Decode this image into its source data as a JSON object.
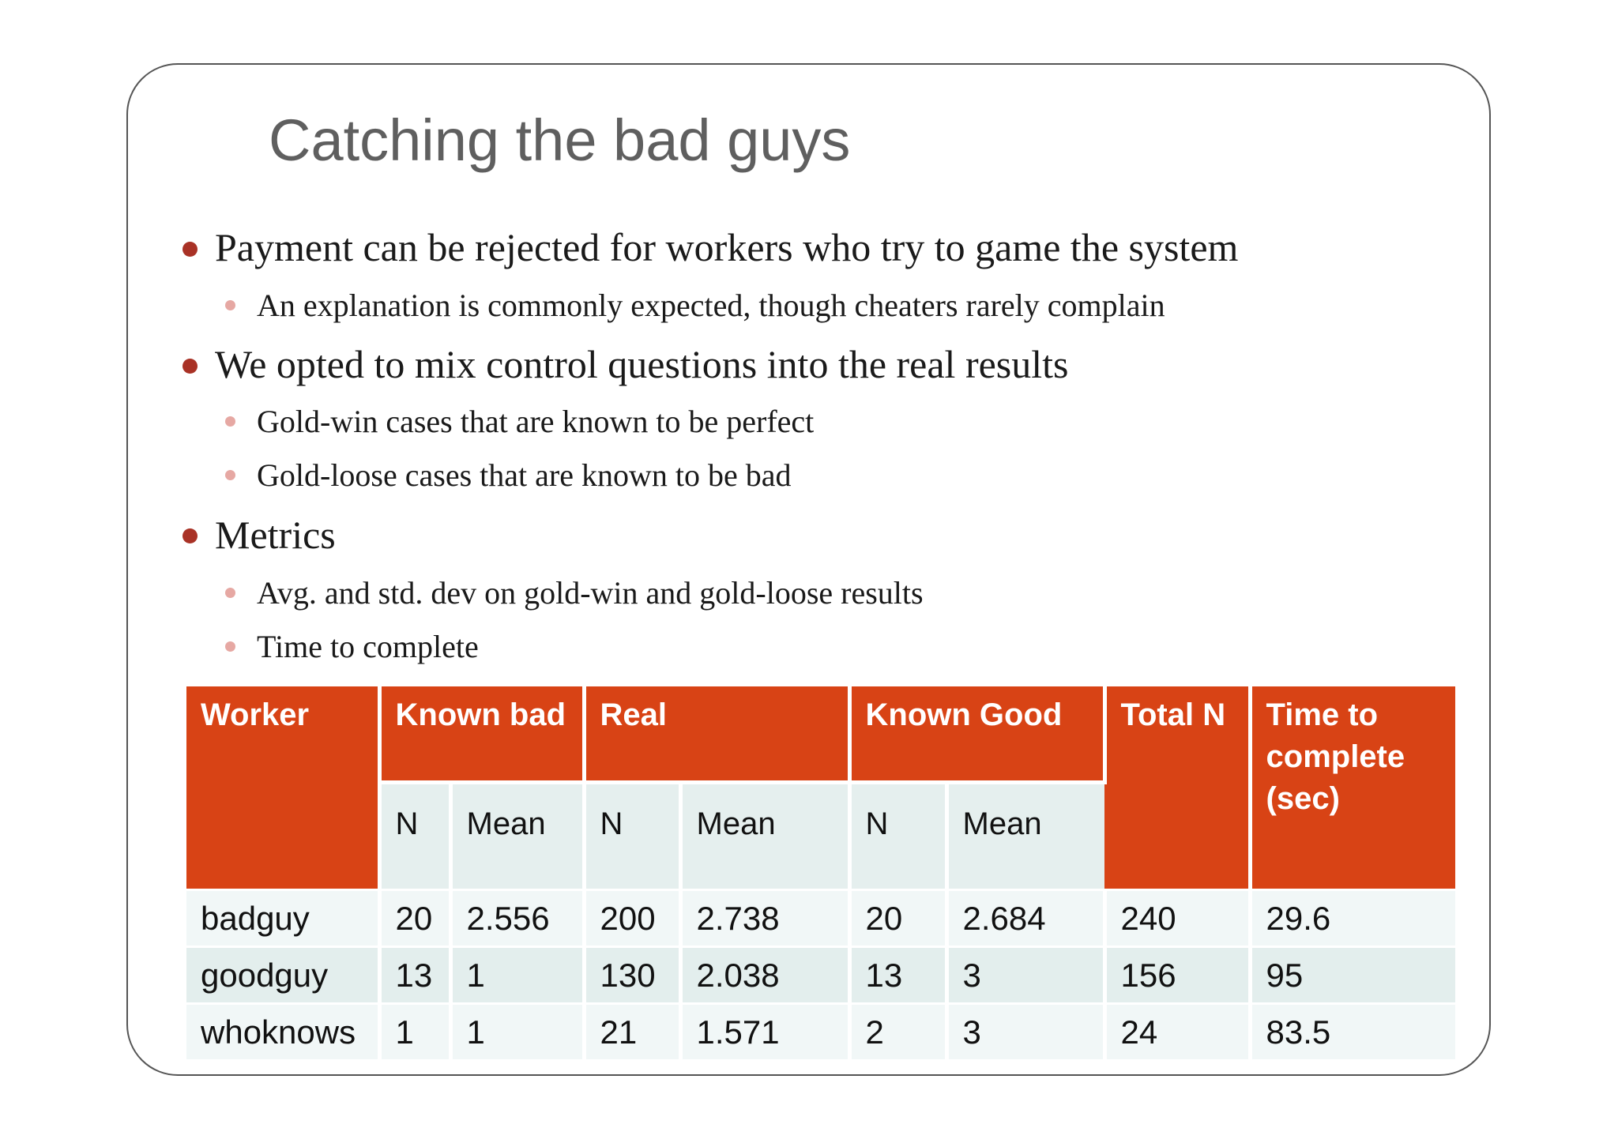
{
  "slide": {
    "title": "Catching the bad guys",
    "bullets": [
      {
        "level": 1,
        "text": "Payment can be rejected for workers who try to game the system"
      },
      {
        "level": 2,
        "text": "An explanation is commonly expected, though cheaters rarely complain"
      },
      {
        "level": 1,
        "text": "We opted to mix control questions into the real results"
      },
      {
        "level": 2,
        "text": "Gold-win cases that are known to be perfect"
      },
      {
        "level": 2,
        "text": "Gold-loose cases that are known to be bad"
      },
      {
        "level": 1,
        "text": "Metrics"
      },
      {
        "level": 2,
        "text": "Avg. and std. dev on gold-win and gold-loose results"
      },
      {
        "level": 2,
        "text": "Time to complete"
      }
    ]
  },
  "table": {
    "header": {
      "worker": "Worker",
      "known_bad": "Known bad",
      "real": "Real",
      "known_good": "Known Good",
      "total_n": "Total N",
      "time_to_complete": "Time to complete (sec)",
      "n": "N",
      "mean": "Mean"
    },
    "rows": [
      [
        "badguy",
        "20",
        "2.556",
        "200",
        "2.738",
        "20",
        "2.684",
        "240",
        "29.6"
      ],
      [
        "goodguy",
        "13",
        "1",
        "130",
        "2.038",
        "13",
        "3",
        "156",
        "95"
      ],
      [
        "whoknows",
        "1",
        "1",
        "21",
        "1.571",
        "2",
        "3",
        "24",
        "83.5"
      ]
    ]
  },
  "colors": {
    "header_bg": "#d84315",
    "bullet_l1": "#a93226",
    "bullet_l2": "#e6a8a3",
    "row_light": "#f1f7f7",
    "row_alt": "#e3eeed"
  }
}
